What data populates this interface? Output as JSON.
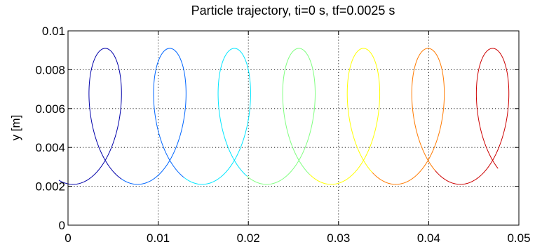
{
  "chart_data": {
    "type": "line",
    "title": "Particle trajectory, ti=0 s, tf=0.0025 s",
    "xlabel": "",
    "ylabel": "y [m]",
    "xlim": [
      0,
      0.05
    ],
    "ylim": [
      0,
      0.01
    ],
    "x_ticks": [
      "0",
      "0.01",
      "0.02",
      "0.03",
      "0.04",
      "0.05"
    ],
    "y_ticks": [
      "0",
      "0.002",
      "0.004",
      "0.006",
      "0.008",
      "0.01"
    ],
    "grid": true,
    "legend": "none",
    "trochoid": {
      "center_x": 0.00015,
      "center_y": 0.0056,
      "x_radius": 0.0034,
      "y_radius": 0.0035,
      "x_step_per_loop": 0.00716,
      "loops": 7,
      "start_angle_deg": 250,
      "end_angle_deg": 2750
    },
    "colors": [
      "#0000aa",
      "#0066ff",
      "#00e6ff",
      "#80ff80",
      "#ffff00",
      "#ff7a00",
      "#cc0000"
    ]
  }
}
